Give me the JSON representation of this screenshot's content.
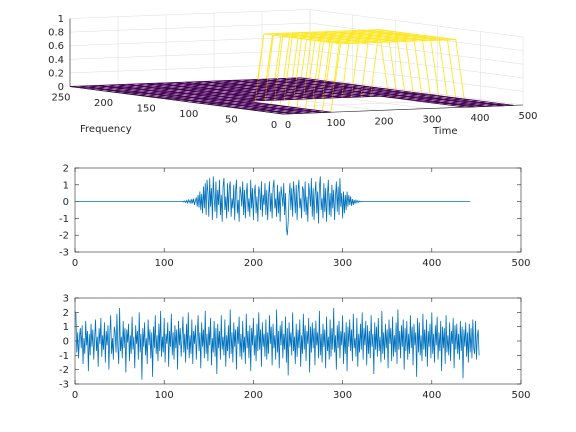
{
  "chart_data": [
    {
      "type": "surface3d",
      "title": "",
      "xlabel": "Time",
      "ylabel": "Frequency",
      "zlabel": "",
      "xlim": [
        0,
        500
      ],
      "ylim": [
        0,
        250
      ],
      "zlim": [
        0,
        1
      ],
      "x_ticks": [
        0,
        100,
        200,
        300,
        400,
        500
      ],
      "y_ticks": [
        0,
        50,
        100,
        150,
        200,
        250
      ],
      "z_ticks": [
        0,
        0.2,
        0.4,
        0.6,
        0.8,
        1
      ],
      "grid": true,
      "colormap": "viridis",
      "colormap_colors": [
        "#440154",
        "#3b528b",
        "#21918c",
        "#5ec962",
        "#fde725"
      ],
      "mask": {
        "description": "binary time-frequency mask",
        "high_value": 1,
        "low_value": 0,
        "high_time_range": [
          120,
          360
        ],
        "high_freq_range": [
          0,
          90
        ]
      }
    },
    {
      "type": "line",
      "title": "",
      "xlabel": "",
      "ylabel": "",
      "xlim": [
        0,
        500
      ],
      "ylim": [
        -3,
        2
      ],
      "x_ticks": [
        0,
        100,
        200,
        300,
        400,
        500
      ],
      "y_ticks": [
        -3,
        -2,
        -1,
        0,
        1,
        2
      ],
      "grid": false,
      "series": [
        {
          "color": "#0072bd",
          "n_samples": 480,
          "active_range": [
            115,
            360
          ],
          "x_step": 1,
          "y": [
            0,
            0,
            0,
            0,
            0,
            0,
            0,
            0,
            0,
            0,
            0,
            0,
            0,
            0,
            0,
            0,
            0,
            0,
            0,
            0,
            0,
            0,
            0,
            0,
            0,
            0,
            0,
            0,
            0,
            0,
            0,
            0,
            0,
            0,
            0,
            0,
            0,
            0,
            0,
            0,
            0,
            0,
            0,
            0,
            0,
            0,
            0,
            0,
            0,
            0,
            0,
            0,
            0,
            0,
            0,
            0,
            0,
            0,
            0,
            0,
            0,
            0,
            0,
            0,
            0,
            0,
            0,
            0,
            0,
            0,
            0,
            0,
            0,
            0,
            0,
            0,
            0,
            0,
            0,
            0,
            0,
            0,
            0,
            0,
            0,
            0,
            0,
            0,
            0,
            0,
            0,
            0,
            0,
            0,
            0,
            0,
            0,
            0,
            0,
            0,
            0,
            0,
            0,
            0,
            0,
            0,
            0,
            0,
            0,
            0,
            0,
            0,
            0,
            0,
            0,
            0,
            0,
            0,
            0,
            0,
            0,
            0.02,
            -0.03,
            0.04,
            -0.05,
            0.06,
            -0.08,
            0.1,
            -0.05,
            0.08,
            -0.12,
            0.15,
            -0.1,
            0.18,
            -0.2,
            0.05,
            0.25,
            -0.3,
            0.4,
            -0.35,
            0.6,
            -0.5,
            0.45,
            -0.7,
            0.9,
            -0.4,
            1.1,
            -0.8,
            1.3,
            0.5,
            -0.9,
            1.4,
            -0.3,
            0.8,
            -1.1,
            1.5,
            0.2,
            -0.6,
            1.2,
            -1,
            0.7,
            -0.2,
            1.3,
            -0.8,
            0.4,
            -1.2,
            0.9,
            1.4,
            -0.5,
            0.3,
            -1,
            1.1,
            -0.6,
            0.8,
            1.2,
            -0.9,
            0.2,
            -0.4,
            1,
            -1.1,
            0.6,
            1.3,
            -0.7,
            0.1,
            -1.2,
            0.9,
            0.5,
            -0.3,
            1.2,
            -0.8,
            0.7,
            -1,
            0.4,
            1.1,
            -0.6,
            0.2,
            -0.9,
            1.3,
            -0.4,
            0.8,
            -1.1,
            0.5,
            1,
            -0.7,
            0.3,
            -1.2,
            0.9,
            0.6,
            -0.5,
            1.2,
            -0.9,
            0.4,
            -0.2,
            1.1,
            -0.8,
            0.7,
            -1.1,
            0.3,
            1.2,
            -0.6,
            0.5,
            -1,
            0.8,
            1.3,
            -0.4,
            0.2,
            -0.9,
            1,
            -0.7,
            0.6,
            -1.2,
            0.9,
            0.4,
            -0.3,
            1.1,
            -0.8,
            0.5,
            -1.6,
            -2,
            -1.2,
            0.3,
            1.1,
            -0.5,
            0.8,
            -0.9,
            1.2,
            0.4,
            -0.7,
            1,
            -1.1,
            0.6,
            1.3,
            -0.4,
            0.2,
            -1,
            0.9,
            0.7,
            -0.6,
            1.2,
            -0.8,
            0.3,
            -1.2,
            1.1,
            0.5,
            -0.3,
            1.4,
            -0.9,
            0.8,
            -1.1,
            0.4,
            1.2,
            -0.7,
            0.6,
            -1.3,
            0.9,
            1.5,
            -0.5,
            0.2,
            -1,
            1.1,
            -0.6,
            0.8,
            -1.2,
            0.4,
            1.3,
            -0.8,
            0.5,
            -0.9,
            1,
            -0.4,
            0.7,
            -1.1,
            0.3,
            1.2,
            -0.6,
            0.9,
            -0.8,
            1.4,
            -0.3,
            0.5,
            -1,
            0.6,
            -0.7,
            0.4,
            -0.5,
            0.6,
            -0.3,
            0.4,
            -0.2,
            0.3,
            -0.25,
            0.15,
            -0.2,
            0.1,
            -0.12,
            0.08,
            -0.06,
            0.05,
            -0.04,
            0.03,
            -0.02,
            0.01,
            0,
            0,
            0,
            0,
            0,
            0,
            0,
            0,
            0,
            0,
            0,
            0,
            0,
            0,
            0,
            0,
            0,
            0,
            0,
            0,
            0,
            0,
            0,
            0,
            0,
            0,
            0,
            0,
            0,
            0,
            0,
            0,
            0,
            0,
            0,
            0,
            0,
            0,
            0,
            0,
            0,
            0,
            0,
            0,
            0,
            0,
            0,
            0,
            0,
            0,
            0,
            0,
            0,
            0,
            0,
            0,
            0,
            0,
            0,
            0,
            0,
            0,
            0,
            0,
            0,
            0,
            0,
            0,
            0,
            0,
            0,
            0,
            0,
            0,
            0,
            0,
            0,
            0,
            0,
            0,
            0,
            0,
            0,
            0,
            0,
            0,
            0,
            0,
            0,
            0,
            0,
            0,
            0,
            0,
            0,
            0,
            0,
            0,
            0,
            0,
            0,
            0,
            0,
            0,
            0,
            0,
            0,
            0,
            0,
            0,
            0,
            0,
            0,
            0,
            0,
            0,
            0,
            0,
            0,
            0,
            0,
            0
          ]
        }
      ]
    },
    {
      "type": "line",
      "title": "",
      "xlabel": "",
      "ylabel": "",
      "xlim": [
        0,
        500
      ],
      "ylim": [
        -3,
        3
      ],
      "x_ticks": [
        0,
        100,
        200,
        300,
        400,
        500
      ],
      "y_ticks": [
        -3,
        -2,
        -1,
        0,
        1,
        2,
        3
      ],
      "grid": false,
      "series": [
        {
          "color": "#0072bd",
          "n_samples": 480,
          "x_step": 1,
          "y": [
            2.1,
            1.9,
            -0.8,
            0.6,
            -1.2,
            0.3,
            0.9,
            -0.5,
            1.1,
            -1.6,
            0.2,
            -0.9,
            1.4,
            -0.3,
            0.7,
            -2.1,
            0.5,
            -1,
            1.2,
            -0.4,
            0.8,
            -1.3,
            0.1,
            1.5,
            -0.7,
            0.3,
            -1.8,
            0.9,
            -0.2,
            1.6,
            -1.1,
            0.4,
            -0.6,
            1.3,
            -1.5,
            0.7,
            -0.3,
            1.1,
            -2,
            0.5,
            1.8,
            -0.9,
            0.2,
            -1.3,
            1,
            0.6,
            -0.8,
            1.9,
            -0.4,
            -1.6,
            2.3,
            -0.7,
            0.3,
            -1.2,
            1.4,
            -0.5,
            0.9,
            -2.2,
            0.8,
            -0.1,
            1.2,
            -1.4,
            0.4,
            -0.9,
            1.7,
            -0.6,
            0.3,
            -1.9,
            1.1,
            -0.2,
            0.7,
            -1.3,
            2,
            -0.8,
            0.5,
            -2.7,
            0.9,
            -0.4,
            1.3,
            -1,
            0.2,
            -1.6,
            1.5,
            -0.3,
            0.8,
            -1.2,
            0.6,
            -2.5,
            1,
            -0.5,
            1.8,
            -0.9,
            0.4,
            -1.4,
            1.2,
            -0.7,
            2.1,
            -1.1,
            0.3,
            -0.8,
            1.6,
            -1.5,
            0.5,
            -0.2,
            1.3,
            -1.8,
            0.7,
            -0.4,
            1.9,
            -1,
            0.6,
            -1.3,
            1.1,
            -0.5,
            0.8,
            -2,
            1.4,
            -0.3,
            0.9,
            -1.1,
            0.2,
            1.7,
            -0.8,
            0.5,
            -1.5,
            1.2,
            -0.6,
            2,
            -1.2,
            0.4,
            -0.9,
            1.5,
            -1.6,
            0.7,
            -0.2,
            1.1,
            -1.3,
            0.3,
            1.8,
            -0.7,
            0.6,
            -1.9,
            1.3,
            -0.4,
            0.8,
            -1.2,
            2.1,
            -0.9,
            0.5,
            -1.4,
            1,
            -0.3,
            1.6,
            -1.7,
            0.2,
            -0.8,
            1.4,
            -1.1,
            0.9,
            -2.3,
            1.2,
            -0.5,
            0.7,
            -1.3,
            1.8,
            -0.6,
            0.3,
            -1,
            1.5,
            -1.8,
            0.4,
            -0.7,
            1.1,
            -1.2,
            2.2,
            -0.9,
            0.6,
            -1.5,
            1.3,
            -0.4,
            0.8,
            -2,
            1,
            -0.2,
            1.7,
            -1.1,
            0.5,
            -1.3,
            1.4,
            -0.8,
            0.3,
            -1.6,
            1.9,
            -0.5,
            0.7,
            -1.2,
            1.1,
            -2.1,
            0.9,
            -0.3,
            1.6,
            -1,
            0.4,
            -1.4,
            1.2,
            -0.7,
            2,
            -0.6,
            0.8,
            -1.8,
            1.3,
            -0.4,
            0.5,
            -1.1,
            1.5,
            -1.3,
            0.6,
            -0.9,
            1.8,
            -0.2,
            1,
            -1.7,
            1.2,
            -0.5,
            0.4,
            -1.3,
            2.2,
            -0.8,
            0.7,
            -1.9,
            1.1,
            -0.3,
            1.4,
            -1.2,
            0.5,
            -0.6,
            1.7,
            -1.5,
            0.9,
            -2.4,
            1.3,
            -0.4,
            0.6,
            -1,
            2,
            -0.7,
            0.3,
            -1.6,
            1.2,
            -1.1,
            0.8,
            -0.5,
            1.5,
            -1.8,
            0.4,
            -0.9,
            1.9,
            -0.6,
            1.1,
            -1.4,
            0.7,
            -0.2,
            1.6,
            -2.2,
            1,
            -0.8,
            1.3,
            -0.5,
            0.9,
            -1.7,
            1.4,
            -0.3,
            0.6,
            -1.2,
            2.1,
            -1,
            0.5,
            -1.5,
            1.2,
            -0.4,
            0.8,
            -1.9,
            1.7,
            -0.7,
            0.3,
            -1.3,
            1.5,
            -1.1,
            0.9,
            -0.6,
            2.3,
            -0.8,
            0.4,
            -2,
            1.1,
            -0.5,
            1.4,
            -1.2,
            0.7,
            -0.3,
            1.8,
            -1.6,
            0.6,
            -0.9,
            1.3,
            -2.1,
            1,
            -0.4,
            1.5,
            -0.7,
            0.8,
            -1.4,
            1.9,
            -0.5,
            0.2,
            -1.1,
            1.6,
            -1.8,
            0.5,
            -0.8,
            1.2,
            -0.6,
            2,
            -1.3,
            0.9,
            -0.3,
            1.4,
            -1.7,
            1.1,
            -0.9,
            0.7,
            -1.2,
            1.8,
            -0.4,
            0.5,
            -2.3,
            1.3,
            -0.6,
            1,
            -1.1,
            1.6,
            -0.7,
            0.3,
            -1.5,
            2.1,
            -0.9,
            0.6,
            -1.3,
            1.2,
            -0.5,
            0.8,
            -1.9,
            1.5,
            -0.2,
            0.9,
            -1.4,
            1.7,
            -1.1,
            0.4,
            -0.8,
            1.3,
            -1.6,
            2.2,
            -0.6,
            0.7,
            -1.2,
            1.1,
            -0.4,
            1.5,
            -2,
            0.9,
            -0.7,
            1.4,
            -1.3,
            0.5,
            -0.9,
            1.8,
            -0.5,
            1,
            -1.7,
            1.2,
            -0.3,
            0.6,
            -2.5,
            1.6,
            -0.8,
            1.3,
            -1,
            0.4,
            -1.4,
            1.9,
            -0.6,
            0.8,
            -1.1,
            1.5,
            -1.8,
            0.7,
            -0.4,
            1.2,
            -1.2,
            2,
            -0.9,
            0.5,
            -1.5,
            1.1,
            -0.3,
            1.7,
            -1.3,
            0.6,
            -0.7,
            1.4,
            -2.1,
            1,
            -0.5,
            0.9,
            -1.6,
            1.8,
            -0.8,
            0.4,
            -1,
            1.3,
            -1.4,
            0.7,
            -0.2,
            1.6,
            -1.9,
            1.1,
            -0.6,
            1.2,
            -0.9,
            0.5,
            -1.3,
            1.4,
            -0.7,
            1,
            -2.6,
            0.8,
            -0.4,
            1.3,
            -1.1,
            0.6,
            -1.5,
            1.2,
            -0.8,
            0.9,
            -1.2,
            1.5,
            -0.5,
            -0.9,
            1.4,
            -1.3,
            0.3,
            0.8,
            -1
          ]
        }
      ]
    }
  ]
}
